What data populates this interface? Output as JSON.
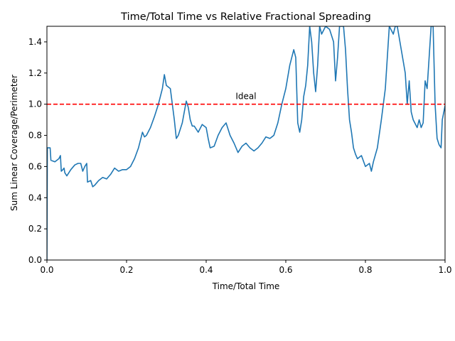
{
  "chart_data": {
    "type": "line",
    "title": "Time/Total Time vs Relative Fractional Spreading",
    "xlabel": "Time/Total Time",
    "ylabel": "Sum Linear Coverage/Perimeter",
    "xlim": [
      0,
      1
    ],
    "ylim": [
      0,
      1.5
    ],
    "xticks": [
      "0.0",
      "0.2",
      "0.4",
      "0.6",
      "0.8",
      "1.0"
    ],
    "yticks": [
      "0.0",
      "0.2",
      "0.4",
      "0.6",
      "0.8",
      "1.0",
      "1.2",
      "1.4"
    ],
    "grid": false,
    "line_color": "#1f77b4",
    "reference_line": {
      "y": 1.0,
      "color": "#ff0000",
      "style": "dashed"
    },
    "annotation": {
      "text": "Ideal",
      "x": 0.5,
      "y": 1.05,
      "color": "#ff0000"
    },
    "series": [
      {
        "color": "#1f77b4",
        "points": [
          [
            0.0,
            0.0
          ],
          [
            0.001,
            0.72
          ],
          [
            0.008,
            0.72
          ],
          [
            0.01,
            0.64
          ],
          [
            0.02,
            0.63
          ],
          [
            0.03,
            0.65
          ],
          [
            0.034,
            0.67
          ],
          [
            0.036,
            0.57
          ],
          [
            0.04,
            0.58
          ],
          [
            0.043,
            0.59
          ],
          [
            0.045,
            0.56
          ],
          [
            0.05,
            0.54
          ],
          [
            0.055,
            0.56
          ],
          [
            0.06,
            0.58
          ],
          [
            0.07,
            0.61
          ],
          [
            0.078,
            0.62
          ],
          [
            0.085,
            0.62
          ],
          [
            0.09,
            0.57
          ],
          [
            0.095,
            0.6
          ],
          [
            0.1,
            0.62
          ],
          [
            0.102,
            0.5
          ],
          [
            0.11,
            0.51
          ],
          [
            0.115,
            0.47
          ],
          [
            0.12,
            0.48
          ],
          [
            0.13,
            0.51
          ],
          [
            0.14,
            0.53
          ],
          [
            0.15,
            0.52
          ],
          [
            0.16,
            0.55
          ],
          [
            0.17,
            0.59
          ],
          [
            0.18,
            0.57
          ],
          [
            0.19,
            0.58
          ],
          [
            0.2,
            0.58
          ],
          [
            0.21,
            0.6
          ],
          [
            0.22,
            0.65
          ],
          [
            0.23,
            0.72
          ],
          [
            0.24,
            0.82
          ],
          [
            0.245,
            0.79
          ],
          [
            0.25,
            0.8
          ],
          [
            0.26,
            0.85
          ],
          [
            0.27,
            0.92
          ],
          [
            0.28,
            1.0
          ],
          [
            0.29,
            1.1
          ],
          [
            0.295,
            1.19
          ],
          [
            0.3,
            1.12
          ],
          [
            0.31,
            1.1
          ],
          [
            0.315,
            1.0
          ],
          [
            0.32,
            0.9
          ],
          [
            0.325,
            0.78
          ],
          [
            0.33,
            0.8
          ],
          [
            0.34,
            0.88
          ],
          [
            0.345,
            0.95
          ],
          [
            0.35,
            1.02
          ],
          [
            0.355,
            0.98
          ],
          [
            0.36,
            0.9
          ],
          [
            0.365,
            0.86
          ],
          [
            0.37,
            0.86
          ],
          [
            0.38,
            0.82
          ],
          [
            0.39,
            0.87
          ],
          [
            0.4,
            0.85
          ],
          [
            0.405,
            0.78
          ],
          [
            0.41,
            0.72
          ],
          [
            0.42,
            0.73
          ],
          [
            0.43,
            0.8
          ],
          [
            0.44,
            0.85
          ],
          [
            0.45,
            0.88
          ],
          [
            0.455,
            0.84
          ],
          [
            0.46,
            0.8
          ],
          [
            0.47,
            0.75
          ],
          [
            0.48,
            0.69
          ],
          [
            0.49,
            0.73
          ],
          [
            0.5,
            0.75
          ],
          [
            0.51,
            0.72
          ],
          [
            0.52,
            0.7
          ],
          [
            0.53,
            0.72
          ],
          [
            0.54,
            0.75
          ],
          [
            0.55,
            0.79
          ],
          [
            0.56,
            0.78
          ],
          [
            0.57,
            0.8
          ],
          [
            0.58,
            0.88
          ],
          [
            0.59,
            1.0
          ],
          [
            0.6,
            1.1
          ],
          [
            0.61,
            1.25
          ],
          [
            0.62,
            1.35
          ],
          [
            0.625,
            1.3
          ],
          [
            0.63,
            0.88
          ],
          [
            0.635,
            0.82
          ],
          [
            0.64,
            0.9
          ],
          [
            0.645,
            1.05
          ],
          [
            0.65,
            1.12
          ],
          [
            0.655,
            1.25
          ],
          [
            0.66,
            1.5
          ],
          [
            0.665,
            1.4
          ],
          [
            0.67,
            1.2
          ],
          [
            0.675,
            1.08
          ],
          [
            0.68,
            1.25
          ],
          [
            0.685,
            1.5
          ],
          [
            0.69,
            1.45
          ],
          [
            0.7,
            1.5
          ],
          [
            0.71,
            1.48
          ],
          [
            0.72,
            1.4
          ],
          [
            0.725,
            1.15
          ],
          [
            0.73,
            1.3
          ],
          [
            0.735,
            1.5
          ],
          [
            0.745,
            1.5
          ],
          [
            0.75,
            1.35
          ],
          [
            0.755,
            1.1
          ],
          [
            0.76,
            0.9
          ],
          [
            0.765,
            0.82
          ],
          [
            0.77,
            0.72
          ],
          [
            0.775,
            0.68
          ],
          [
            0.78,
            0.65
          ],
          [
            0.79,
            0.67
          ],
          [
            0.8,
            0.6
          ],
          [
            0.81,
            0.62
          ],
          [
            0.815,
            0.57
          ],
          [
            0.82,
            0.63
          ],
          [
            0.83,
            0.72
          ],
          [
            0.84,
            0.9
          ],
          [
            0.85,
            1.1
          ],
          [
            0.86,
            1.5
          ],
          [
            0.87,
            1.45
          ],
          [
            0.875,
            1.5
          ],
          [
            0.88,
            1.5
          ],
          [
            0.89,
            1.35
          ],
          [
            0.9,
            1.2
          ],
          [
            0.905,
            1.0
          ],
          [
            0.91,
            1.15
          ],
          [
            0.915,
            0.95
          ],
          [
            0.92,
            0.9
          ],
          [
            0.93,
            0.85
          ],
          [
            0.935,
            0.9
          ],
          [
            0.94,
            0.85
          ],
          [
            0.945,
            0.88
          ],
          [
            0.95,
            1.15
          ],
          [
            0.955,
            1.1
          ],
          [
            0.96,
            1.3
          ],
          [
            0.965,
            1.5
          ],
          [
            0.97,
            1.5
          ],
          [
            0.975,
            1.0
          ],
          [
            0.98,
            0.78
          ],
          [
            0.985,
            0.74
          ],
          [
            0.99,
            0.72
          ],
          [
            0.993,
            0.9
          ],
          [
            1.0,
            0.99
          ]
        ]
      }
    ]
  }
}
